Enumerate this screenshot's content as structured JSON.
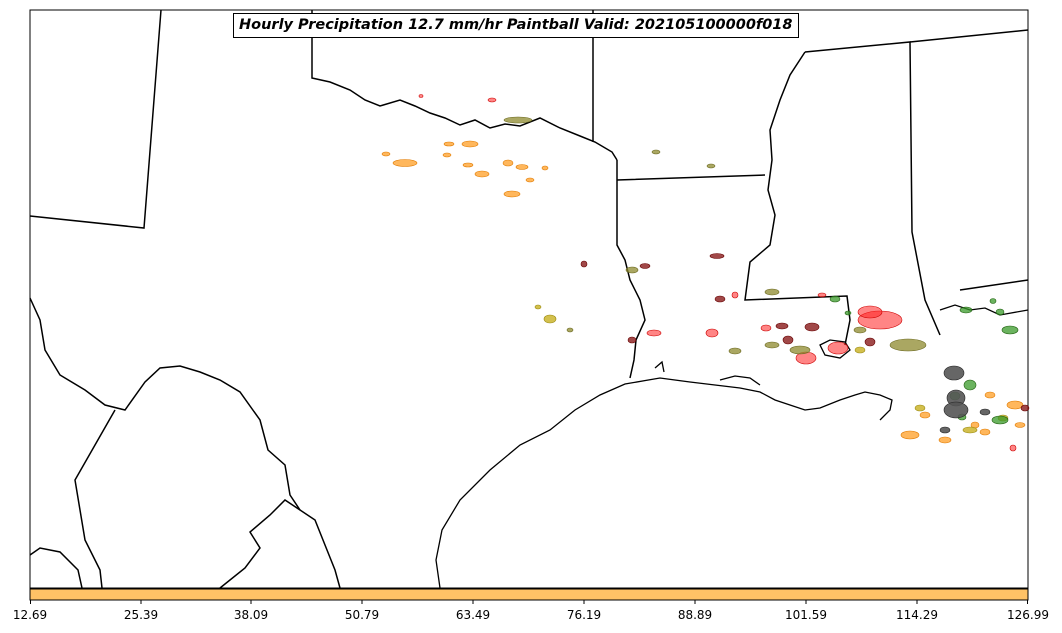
{
  "title": "Hourly Precipitation 12.7 mm/hr Paintball Valid: 202105100000f018",
  "colorbar": {
    "fill_color": "#ffc266",
    "ticks": [
      "12.69",
      "25.39",
      "38.09",
      "50.79",
      "63.49",
      "76.19",
      "88.89",
      "101.59",
      "114.29",
      "126.99"
    ]
  },
  "colors": {
    "red": "#ff2020",
    "orange": "#ffa533",
    "olive": "#8e8a2e",
    "green": "#3a9a2a",
    "maroon": "#8a1a1a",
    "gray": "#555555",
    "yellow": "#c8b020",
    "border": "#000000"
  }
}
